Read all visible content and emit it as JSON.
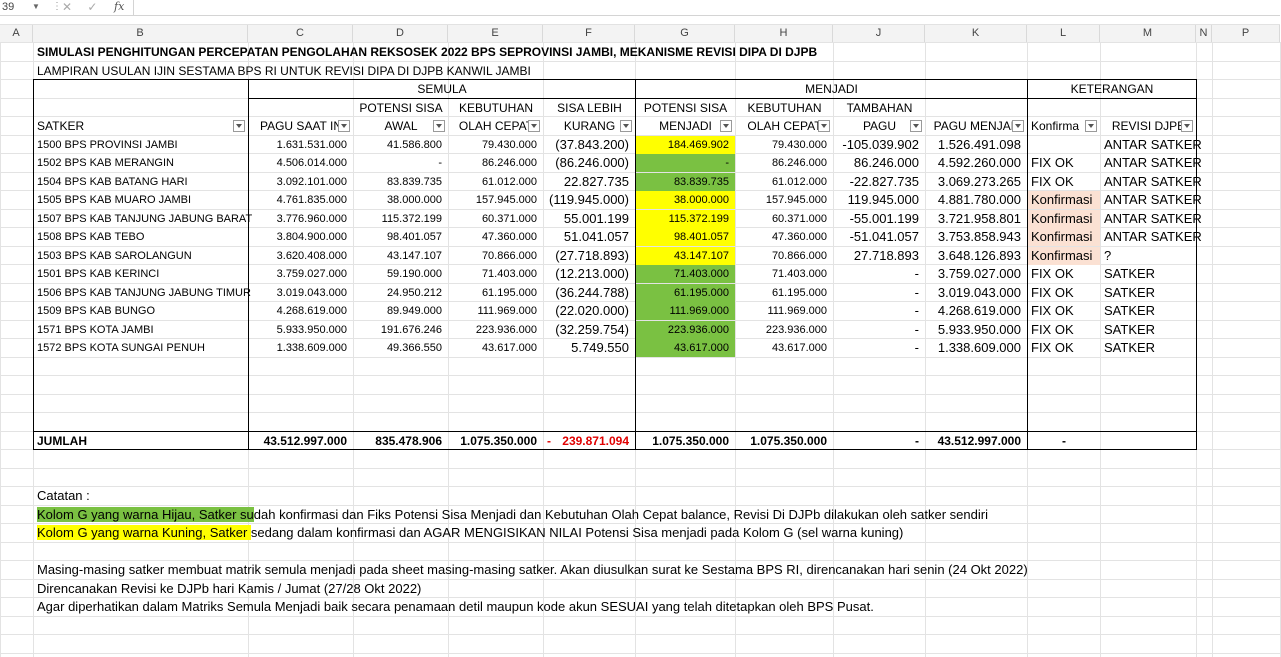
{
  "formula_bar": {
    "name_box": "39",
    "fx_label": "fx",
    "buttons": "✕ ✓"
  },
  "column_headers": [
    "A",
    "B",
    "C",
    "D",
    "E",
    "F",
    "G",
    "H",
    "J",
    "K",
    "L",
    "M",
    "N",
    "P"
  ],
  "title1": "SIMULASI PENGHITUNGAN PERCEPATAN PENGOLAHAN  REKSOSEK 2022 BPS SEPROVINSI JAMBI, MEKANISME REVISI DIPA DI DJPB",
  "title2": "LAMPIRAN USULAN IJIN SESTAMA BPS RI UNTUK REVISI DIPA DI DJPB KANWIL JAMBI",
  "groups": {
    "semula": "SEMULA",
    "menjadi": "MENJADI",
    "keterangan": "KETERANGAN"
  },
  "headers_row1": {
    "d": "POTENSI SISA",
    "e": "KEBUTUHAN",
    "f": "SISA LEBIH",
    "g": "POTENSI SISA",
    "h": "KEBUTUHAN",
    "j": "TAMBAHAN"
  },
  "headers_row2": {
    "b": "SATKER",
    "c": "PAGU SAAT IN",
    "d": "AWAL",
    "e": "OLAH CEPAT",
    "f": "KURANG",
    "g": "MENJADI",
    "h": "OLAH CEPAT",
    "j": "PAGU",
    "k": "PAGU MENJAD",
    "l": "Konfirma",
    "m": "REVISI DJPB"
  },
  "rows": [
    {
      "satker": "1500 BPS PROVINSI JAMBI",
      "pagu": "1.631.531.000",
      "pot_awal": "41.586.800",
      "keb": "79.430.000",
      "sisa": "(37.843.200)",
      "pot_menjadi": "184.469.902",
      "keb2": "79.430.000",
      "tambah": "-105.039.902",
      "pagu_menjadi": "1.526.491.098",
      "konf": "",
      "revisi": "ANTAR SATKER",
      "gcolor": "yellow",
      "lcolor": ""
    },
    {
      "satker": "1502 BPS KAB MERANGIN",
      "pagu": "4.506.014.000",
      "pot_awal": "-",
      "keb": "86.246.000",
      "sisa": "(86.246.000)",
      "pot_menjadi": "-",
      "keb2": "86.246.000",
      "tambah": "86.246.000",
      "pagu_menjadi": "4.592.260.000",
      "konf": "FIX OK",
      "revisi": "ANTAR SATKER",
      "gcolor": "green",
      "lcolor": ""
    },
    {
      "satker": "1504 BPS KAB BATANG HARI",
      "pagu": "3.092.101.000",
      "pot_awal": "83.839.735",
      "keb": "61.012.000",
      "sisa": "22.827.735",
      "pot_menjadi": "83.839.735",
      "keb2": "61.012.000",
      "tambah": "-22.827.735",
      "pagu_menjadi": "3.069.273.265",
      "konf": "FIX OK",
      "revisi": "ANTAR SATKER",
      "gcolor": "green",
      "lcolor": ""
    },
    {
      "satker": "1505 BPS KAB MUARO JAMBI",
      "pagu": "4.761.835.000",
      "pot_awal": "38.000.000",
      "keb": "157.945.000",
      "sisa": "(119.945.000)",
      "pot_menjadi": "38.000.000",
      "keb2": "157.945.000",
      "tambah": "119.945.000",
      "pagu_menjadi": "4.881.780.000",
      "konf": "Konfirmasi",
      "revisi": "ANTAR SATKER",
      "gcolor": "yellow",
      "lcolor": "peach"
    },
    {
      "satker": "1507 BPS KAB TANJUNG JABUNG BARAT",
      "pagu": "3.776.960.000",
      "pot_awal": "115.372.199",
      "keb": "60.371.000",
      "sisa": "55.001.199",
      "pot_menjadi": "115.372.199",
      "keb2": "60.371.000",
      "tambah": "-55.001.199",
      "pagu_menjadi": "3.721.958.801",
      "konf": "Konfirmasi",
      "revisi": "ANTAR SATKER",
      "gcolor": "yellow",
      "lcolor": "peach"
    },
    {
      "satker": "1508 BPS KAB TEBO",
      "pagu": "3.804.900.000",
      "pot_awal": "98.401.057",
      "keb": "47.360.000",
      "sisa": "51.041.057",
      "pot_menjadi": "98.401.057",
      "keb2": "47.360.000",
      "tambah": "-51.041.057",
      "pagu_menjadi": "3.753.858.943",
      "konf": "Konfirmasi",
      "revisi": "ANTAR SATKER",
      "gcolor": "yellow",
      "lcolor": "peach"
    },
    {
      "satker": "1503 BPS KAB SAROLANGUN",
      "pagu": "3.620.408.000",
      "pot_awal": "43.147.107",
      "keb": "70.866.000",
      "sisa": "(27.718.893)",
      "pot_menjadi": "43.147.107",
      "keb2": "70.866.000",
      "tambah": "27.718.893",
      "pagu_menjadi": "3.648.126.893",
      "konf": "Konfirmasi",
      "revisi": "?",
      "gcolor": "yellow",
      "lcolor": "peach"
    },
    {
      "satker": "1501 BPS KAB KERINCI",
      "pagu": "3.759.027.000",
      "pot_awal": "59.190.000",
      "keb": "71.403.000",
      "sisa": "(12.213.000)",
      "pot_menjadi": "71.403.000",
      "keb2": "71.403.000",
      "tambah": "-",
      "pagu_menjadi": "3.759.027.000",
      "konf": "FIX OK",
      "revisi": "SATKER",
      "gcolor": "green",
      "lcolor": ""
    },
    {
      "satker": "1506 BPS KAB TANJUNG JABUNG TIMUR",
      "pagu": "3.019.043.000",
      "pot_awal": "24.950.212",
      "keb": "61.195.000",
      "sisa": "(36.244.788)",
      "pot_menjadi": "61.195.000",
      "keb2": "61.195.000",
      "tambah": "-",
      "pagu_menjadi": "3.019.043.000",
      "konf": "FIX OK",
      "revisi": "SATKER",
      "gcolor": "green",
      "lcolor": ""
    },
    {
      "satker": "1509 BPS KAB BUNGO",
      "pagu": "4.268.619.000",
      "pot_awal": "89.949.000",
      "keb": "111.969.000",
      "sisa": "(22.020.000)",
      "pot_menjadi": "111.969.000",
      "keb2": "111.969.000",
      "tambah": "-",
      "pagu_menjadi": "4.268.619.000",
      "konf": "FIX OK",
      "revisi": "SATKER",
      "gcolor": "green",
      "lcolor": ""
    },
    {
      "satker": "1571 BPS KOTA JAMBI",
      "pagu": "5.933.950.000",
      "pot_awal": "191.676.246",
      "keb": "223.936.000",
      "sisa": "(32.259.754)",
      "pot_menjadi": "223.936.000",
      "keb2": "223.936.000",
      "tambah": "-",
      "pagu_menjadi": "5.933.950.000",
      "konf": "FIX OK",
      "revisi": "SATKER",
      "gcolor": "green",
      "lcolor": ""
    },
    {
      "satker": "1572 BPS KOTA SUNGAI PENUH",
      "pagu": "1.338.609.000",
      "pot_awal": "49.366.550",
      "keb": "43.617.000",
      "sisa": "5.749.550",
      "pot_menjadi": "43.617.000",
      "keb2": "43.617.000",
      "tambah": "-",
      "pagu_menjadi": "1.338.609.000",
      "konf": "FIX OK",
      "revisi": "SATKER",
      "gcolor": "green",
      "lcolor": ""
    }
  ],
  "total": {
    "label": "JUMLAH",
    "pagu": "43.512.997.000",
    "pot_awal": "835.478.906",
    "keb": "1.075.350.000",
    "sisa_dash": "-",
    "sisa": "239.871.094",
    "pot_menjadi": "1.075.350.000",
    "keb2": "1.075.350.000",
    "tambah": "-",
    "pagu_menjadi": "43.512.997.000",
    "konf": "-"
  },
  "notes": {
    "catatan": "Catatan :",
    "green_hl": "Kolom G yang warna Hijau, Satker su",
    "green_rest": "dah konfirmasi dan Fiks Potensi Sisa Menjadi dan Kebutuhan Olah Cepat  balance, Revisi Di DJPb dilakukan oleh satker sendiri",
    "yellow_hl": "Kolom G yang warna Kuning, Satker ",
    "yellow_rest": "sedang dalam konfirmasi dan AGAR MENGISIKAN NILAI Potensi Sisa menjadi  pada Kolom G (sel warna kuning)",
    "line1": "Masing-masing satker membuat matrik semula menjadi  pada sheet masing-masing satker. Akan diusulkan surat ke Sestama BPS RI, direncanakan hari senin (24 Okt 2022)",
    "line2": "Direncanakan Revisi ke DJPb hari Kamis / Jumat (27/28 Okt 2022)",
    "line3": "Agar diperhatikan dalam Matriks Semula Menjadi baik secara penamaan detil maupun kode akun SESUAI yang telah ditetapkan oleh BPS Pusat."
  }
}
